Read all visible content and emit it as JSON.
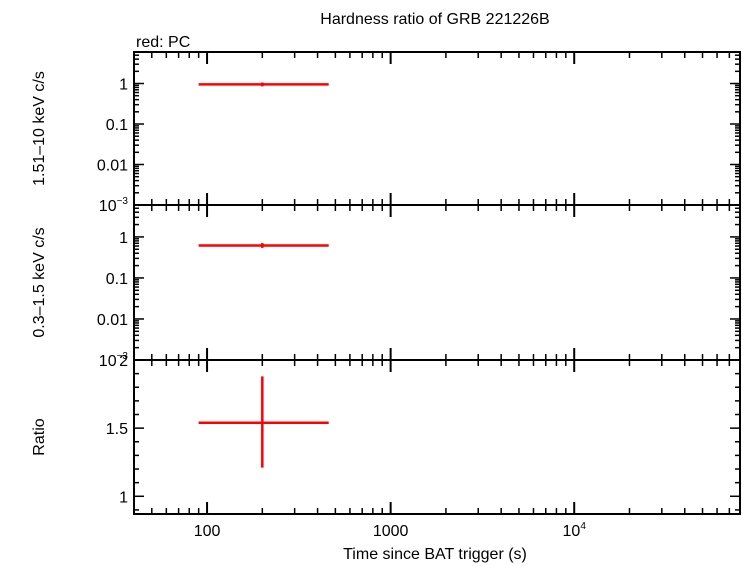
{
  "colors": {
    "series": "#ff0000",
    "axis": "#000000",
    "background": "#ffffff"
  },
  "chart_data": {
    "type": "scatter",
    "title": "Hardness ratio of GRB 221226B",
    "legend": "red: PC",
    "x_axis": {
      "label": "Time since BAT trigger (s)",
      "scale": "log",
      "range": [
        40,
        80000
      ],
      "tick_labels": [
        {
          "value": 100,
          "base": "100",
          "sup": ""
        },
        {
          "value": 1000,
          "base": "1000",
          "sup": ""
        },
        {
          "value": 10000,
          "base": "10",
          "sup": "4"
        }
      ]
    },
    "panels": [
      {
        "ylabel": "1.51–10 keV c/s",
        "y_scale": "log",
        "y_range": [
          0.001,
          6
        ],
        "tick_labels": [
          {
            "value": 1,
            "base": "1",
            "sup": ""
          },
          {
            "value": 0.1,
            "base": "0.1",
            "sup": ""
          },
          {
            "value": 0.01,
            "base": "0.01",
            "sup": ""
          },
          {
            "value": 0.001,
            "base": "10",
            "sup": "−3"
          }
        ],
        "points": [
          {
            "x": 200,
            "x_lo": 90,
            "x_hi": 460,
            "y": 0.95,
            "y_lo": 0.85,
            "y_hi": 1.06
          }
        ]
      },
      {
        "ylabel": "0.3–1.5 keV c/s",
        "y_scale": "log",
        "y_range": [
          0.001,
          6
        ],
        "tick_labels": [
          {
            "value": 1,
            "base": "1",
            "sup": ""
          },
          {
            "value": 0.1,
            "base": "0.1",
            "sup": ""
          },
          {
            "value": 0.01,
            "base": "0.01",
            "sup": ""
          },
          {
            "value": 0.001,
            "base": "10",
            "sup": "−3"
          }
        ],
        "points": [
          {
            "x": 200,
            "x_lo": 90,
            "x_hi": 460,
            "y": 0.62,
            "y_lo": 0.54,
            "y_hi": 0.71
          }
        ]
      },
      {
        "ylabel": "Ratio",
        "y_scale": "linear",
        "y_range": [
          0.87,
          2.0
        ],
        "tick_labels": [
          {
            "value": 2,
            "base": "2",
            "sup": ""
          },
          {
            "value": 1.5,
            "base": "1.5",
            "sup": ""
          },
          {
            "value": 1,
            "base": "1",
            "sup": ""
          }
        ],
        "points": [
          {
            "x": 200,
            "x_lo": 90,
            "x_hi": 460,
            "y": 1.54,
            "y_lo": 1.21,
            "y_hi": 1.88
          }
        ]
      }
    ]
  }
}
